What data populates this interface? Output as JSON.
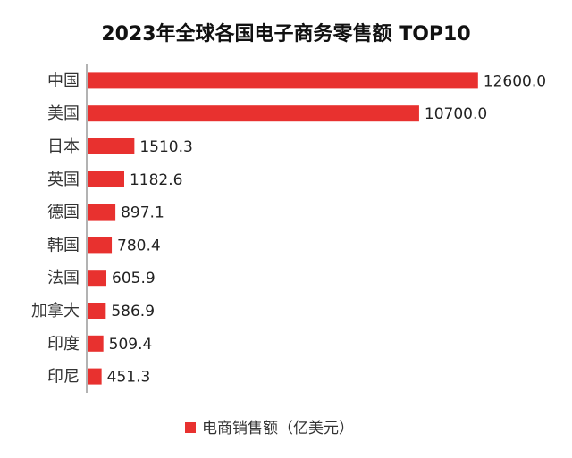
{
  "chart_data": {
    "type": "bar",
    "orientation": "horizontal",
    "title": "2023年全球各国电子商务零售额 TOP10",
    "categories": [
      "中国",
      "美国",
      "日本",
      "英国",
      "德国",
      "韩国",
      "法国",
      "加拿大",
      "印度",
      "印尼"
    ],
    "series": [
      {
        "name": "电商销售额（亿美元）",
        "values": [
          12600.0,
          10700.0,
          1510.3,
          1182.6,
          897.1,
          780.4,
          605.9,
          586.9,
          509.4,
          451.3
        ],
        "value_labels": [
          "12600.0",
          "10700.0",
          "1510.3",
          "1182.6",
          "897.1",
          "780.4",
          "605.9",
          "586.9",
          "509.4",
          "451.3"
        ],
        "color": "#e8312f"
      }
    ],
    "xlim": [
      0,
      13500
    ],
    "grid": false,
    "legend": "bottom-center"
  }
}
